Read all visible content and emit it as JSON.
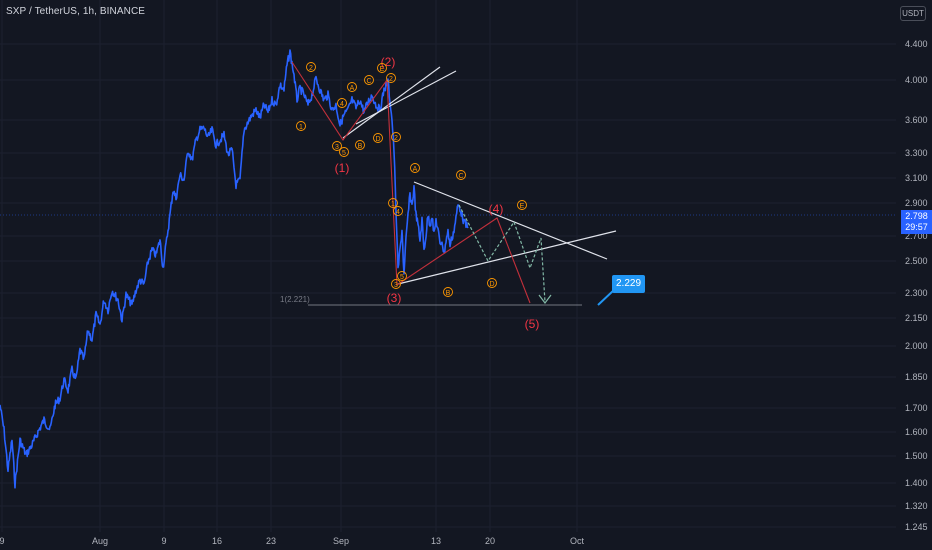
{
  "header": {
    "title": "SXP / TetherUS, 1h, BINANCE"
  },
  "price_axis": {
    "currency": "USDT",
    "ticks": [
      "4.400",
      "4.000",
      "3.600",
      "3.300",
      "3.100",
      "2.900",
      "2.700",
      "2.500",
      "2.300",
      "2.150",
      "2.000",
      "1.850",
      "1.700",
      "1.600",
      "1.500",
      "1.400",
      "1.320",
      "1.245"
    ],
    "current_price": "2.798",
    "countdown": "29:57"
  },
  "time_axis": {
    "ticks": [
      "9",
      "Aug",
      "9",
      "16",
      "23",
      "Sep",
      "13",
      "20",
      "Oct"
    ]
  },
  "annotations": {
    "target_label": "2.229",
    "fib_label": "1(2.221)",
    "wave_labels_major": [
      "(1)",
      "(2)",
      "(3)",
      "(4)",
      "(5)"
    ],
    "wave_labels_minor": [
      "①",
      "②",
      "③",
      "④",
      "⑤",
      "Ⓐ",
      "Ⓑ",
      "Ⓒ",
      "Ⓓ",
      "Ⓔ",
      "⑧",
      "⓪"
    ]
  },
  "colors": {
    "background": "#131722",
    "price_line": "#2962ff",
    "wave_major": "#f23645",
    "wave_minor": "#ff9800",
    "trendline": "#e0e3eb",
    "projection": "#82b8a6"
  }
}
